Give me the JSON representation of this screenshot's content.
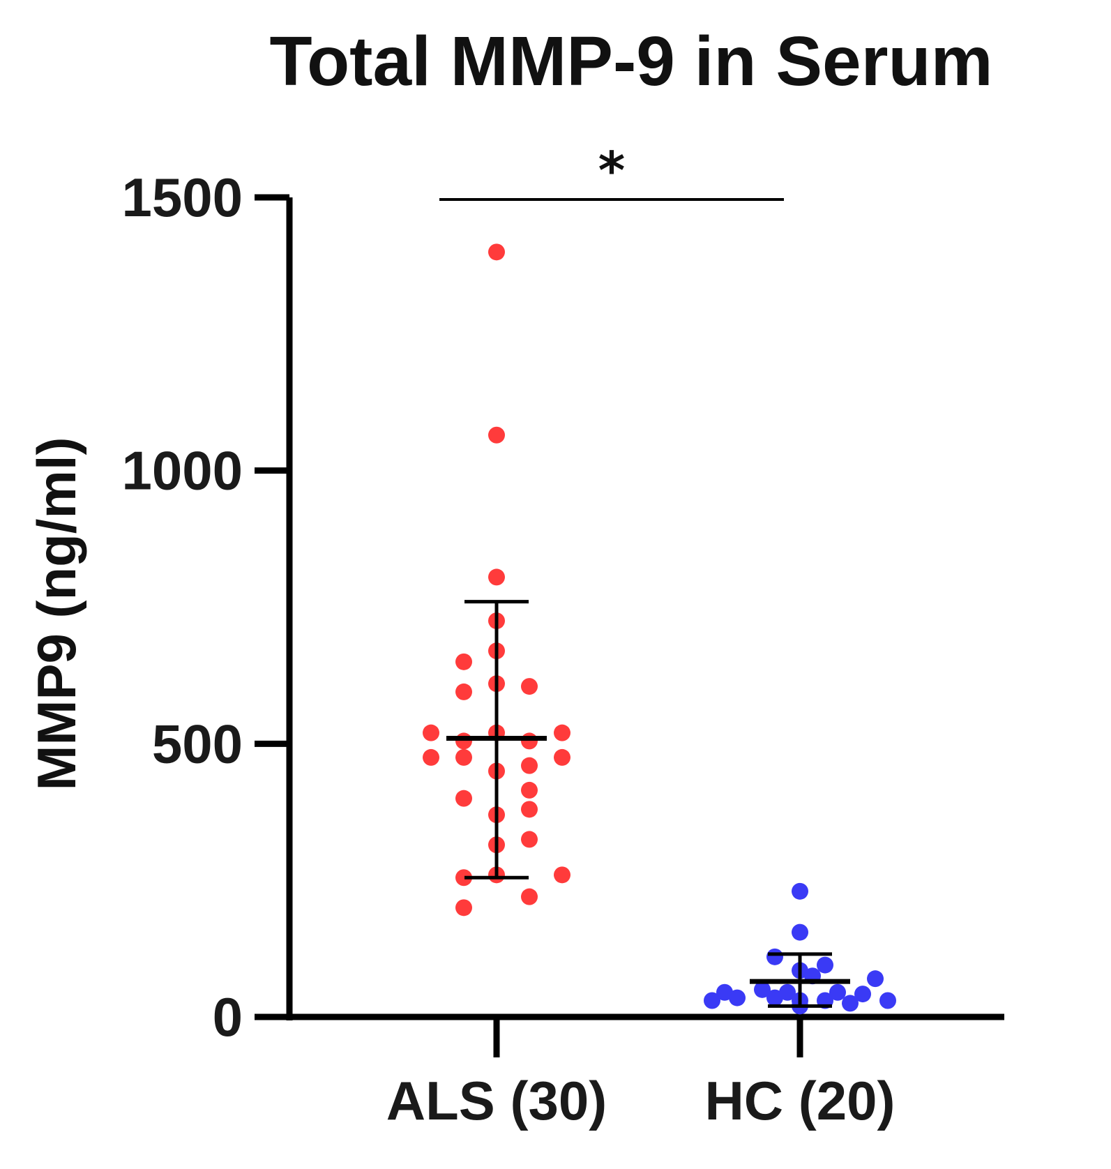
{
  "chart_data": {
    "type": "scatter",
    "title": "Total MMP-9 in Serum",
    "ylabel": "MMP9 (ng/ml)",
    "xlabel": "",
    "ylim": [
      0,
      1500
    ],
    "yticks": [
      0,
      500,
      1000,
      1500
    ],
    "grid": false,
    "legend": "none",
    "categories": [
      "ALS (30)",
      "HC (20)"
    ],
    "significance": {
      "label": "*",
      "between": [
        "ALS (30)",
        "HC (20)"
      ]
    },
    "series": [
      {
        "category": "ALS (30)",
        "color": "#ff3b3b",
        "mean": 510,
        "sd_low": 255,
        "sd_high": 760,
        "points": [
          {
            "offset": 0,
            "value": 1400
          },
          {
            "offset": 0,
            "value": 1065
          },
          {
            "offset": 0,
            "value": 805
          },
          {
            "offset": 0,
            "value": 725
          },
          {
            "offset": 0,
            "value": 670
          },
          {
            "offset": -1,
            "value": 650
          },
          {
            "offset": 0,
            "value": 610
          },
          {
            "offset": 1,
            "value": 605
          },
          {
            "offset": -1,
            "value": 595
          },
          {
            "offset": -2,
            "value": 520
          },
          {
            "offset": 0,
            "value": 520
          },
          {
            "offset": 2,
            "value": 520
          },
          {
            "offset": -1,
            "value": 505
          },
          {
            "offset": 1,
            "value": 505
          },
          {
            "offset": -2,
            "value": 475
          },
          {
            "offset": -1,
            "value": 475
          },
          {
            "offset": 2,
            "value": 475
          },
          {
            "offset": 1,
            "value": 460
          },
          {
            "offset": 0,
            "value": 450
          },
          {
            "offset": 1,
            "value": 415
          },
          {
            "offset": -1,
            "value": 400
          },
          {
            "offset": 1,
            "value": 380
          },
          {
            "offset": 0,
            "value": 370
          },
          {
            "offset": 1,
            "value": 325
          },
          {
            "offset": 0,
            "value": 315
          },
          {
            "offset": -1,
            "value": 255
          },
          {
            "offset": 0,
            "value": 260
          },
          {
            "offset": 2,
            "value": 260
          },
          {
            "offset": 1,
            "value": 220
          },
          {
            "offset": -1,
            "value": 200
          }
        ]
      },
      {
        "category": "HC (20)",
        "color": "#3a3af5",
        "mean": 65,
        "sd_low": 20,
        "sd_high": 115,
        "points": [
          {
            "offset": 0,
            "value": 230
          },
          {
            "offset": 0,
            "value": 155
          },
          {
            "offset": -1,
            "value": 110
          },
          {
            "offset": 1,
            "value": 95
          },
          {
            "offset": 0,
            "value": 85
          },
          {
            "offset": 0.5,
            "value": 75
          },
          {
            "offset": 3,
            "value": 70
          },
          {
            "offset": -1.5,
            "value": 50
          },
          {
            "offset": -0.5,
            "value": 45
          },
          {
            "offset": -3,
            "value": 45
          },
          {
            "offset": 1.5,
            "value": 45
          },
          {
            "offset": 2.5,
            "value": 42
          },
          {
            "offset": -3.5,
            "value": 30
          },
          {
            "offset": -2.5,
            "value": 35
          },
          {
            "offset": -1,
            "value": 35
          },
          {
            "offset": 0,
            "value": 30
          },
          {
            "offset": 1,
            "value": 30
          },
          {
            "offset": 3.5,
            "value": 30
          },
          {
            "offset": 2,
            "value": 25
          },
          {
            "offset": 0,
            "value": 20
          }
        ]
      }
    ]
  }
}
